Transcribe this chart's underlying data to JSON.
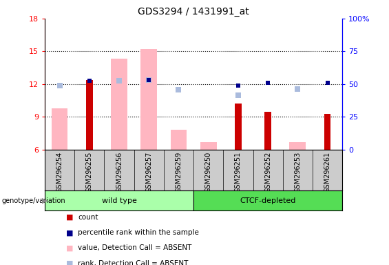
{
  "title": "GDS3294 / 1431991_at",
  "samples": [
    "GSM296254",
    "GSM296255",
    "GSM296256",
    "GSM296257",
    "GSM296259",
    "GSM296250",
    "GSM296251",
    "GSM296252",
    "GSM296253",
    "GSM296261"
  ],
  "groups": [
    "wild type",
    "wild type",
    "wild type",
    "wild type",
    "wild type",
    "CTCF-depleted",
    "CTCF-depleted",
    "CTCF-depleted",
    "CTCF-depleted",
    "CTCF-depleted"
  ],
  "count_values": [
    null,
    12.4,
    null,
    null,
    null,
    null,
    10.2,
    9.5,
    null,
    9.3
  ],
  "percentile_values": [
    null,
    12.3,
    null,
    12.4,
    null,
    null,
    11.85,
    12.1,
    null,
    12.1
  ],
  "absent_value_values": [
    9.8,
    null,
    14.3,
    15.2,
    7.8,
    6.7,
    null,
    null,
    6.7,
    null
  ],
  "absent_rank_values": [
    11.9,
    null,
    12.3,
    12.4,
    11.5,
    null,
    11.0,
    null,
    11.55,
    null
  ],
  "ylim": [
    6,
    18
  ],
  "yticks": [
    6,
    9,
    12,
    15,
    18
  ],
  "y2ticks_vals": [
    0,
    25,
    50,
    75,
    100
  ],
  "y2ticks_labels": [
    "0",
    "25",
    "50",
    "75",
    "100%"
  ],
  "group1_color": "#aaffaa",
  "group2_color": "#55dd55",
  "bar_color_count": "#cc0000",
  "bar_color_percentile": "#00008b",
  "bar_color_absent_value": "#ffb6c1",
  "bar_color_absent_rank": "#aabbdd",
  "group1_label": "wild type",
  "group2_label": "CTCF-depleted",
  "legend_labels": [
    "count",
    "percentile rank within the sample",
    "value, Detection Call = ABSENT",
    "rank, Detection Call = ABSENT"
  ],
  "legend_colors": [
    "#cc0000",
    "#00008b",
    "#ffb6c1",
    "#aabbdd"
  ]
}
